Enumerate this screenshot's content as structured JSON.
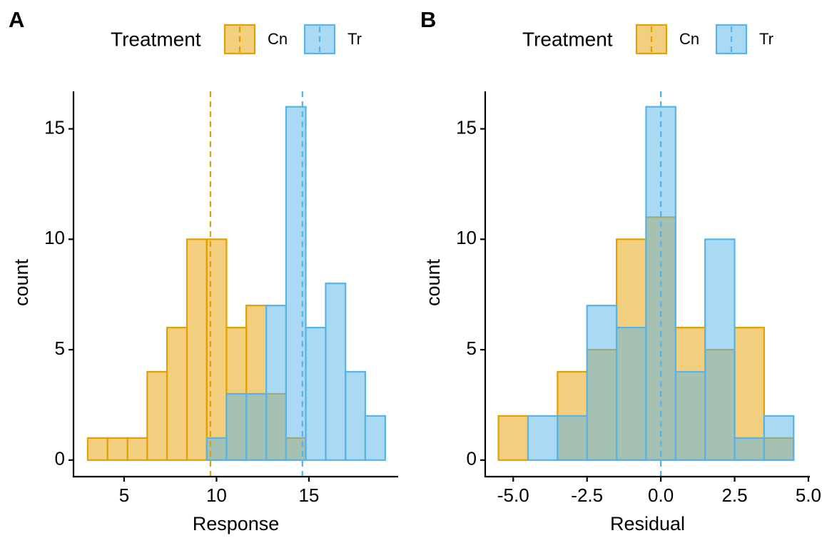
{
  "chart_data": [
    {
      "type": "histogram",
      "tag": "A",
      "xlabel": "Response",
      "ylabel": "count",
      "legend_title": "Treatment",
      "legend_position": "top",
      "bins": [
        3.03,
        4.1,
        5.18,
        6.25,
        7.32,
        8.4,
        9.47,
        10.54,
        11.61,
        12.69,
        13.76,
        14.83,
        15.91,
        16.98,
        18.05,
        19.13
      ],
      "series": [
        {
          "name": "Cn",
          "color": "#E69F00",
          "mean": 9.67,
          "values": [
            1,
            1,
            1,
            4,
            6,
            10,
            10,
            6,
            7,
            3,
            1,
            0,
            0,
            0,
            0
          ]
        },
        {
          "name": "Tr",
          "color": "#56B4E9",
          "mean": 14.65,
          "values": [
            0,
            0,
            0,
            0,
            0,
            0,
            1,
            3,
            3,
            7,
            16,
            6,
            8,
            4,
            2
          ]
        }
      ],
      "xlim": [
        2.26,
        19.83
      ],
      "ylim": [
        -0.75,
        16.7
      ],
      "xticks": [
        5,
        10,
        15
      ],
      "yticks": [
        0,
        5,
        10,
        15
      ]
    },
    {
      "type": "histogram",
      "tag": "B",
      "xlabel": "Residual",
      "ylabel": "count",
      "legend_title": "Treatment",
      "legend_position": "top",
      "bins": [
        -5.5,
        -4.5,
        -3.5,
        -2.5,
        -1.5,
        -0.5,
        0.5,
        1.5,
        2.5,
        3.5,
        4.5
      ],
      "series": [
        {
          "name": "Cn",
          "color": "#E69F00",
          "mean": 0,
          "values": [
            2,
            0,
            4,
            5,
            10,
            11,
            6,
            5,
            6,
            1
          ]
        },
        {
          "name": "Tr",
          "color": "#56B4E9",
          "mean": 0,
          "values": [
            0,
            2,
            2,
            7,
            6,
            16,
            4,
            10,
            1,
            2
          ]
        }
      ],
      "xlim": [
        -5.95,
        5.05
      ],
      "ylim": [
        -0.75,
        16.7
      ],
      "xticks": [
        {
          "value": -5,
          "label": "-5.0"
        },
        {
          "value": -2.5,
          "label": "-2.5"
        },
        {
          "value": 0,
          "label": "0.0"
        },
        {
          "value": 2.5,
          "label": "2.5"
        },
        {
          "value": 5,
          "label": "5.0"
        }
      ],
      "yticks": [
        0,
        5,
        10,
        15
      ]
    }
  ]
}
